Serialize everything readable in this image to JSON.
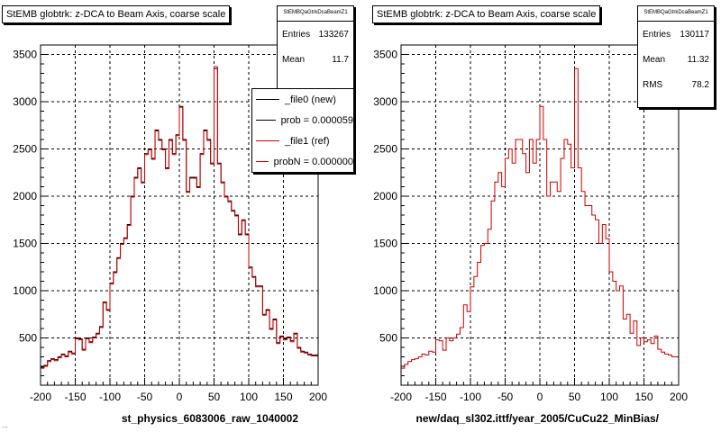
{
  "chart_data": [
    {
      "type": "line",
      "title": "StEMB globtrk: z-DCA to Beam Axis, coarse scale",
      "xlabel": "st_physics_6083006_raw_1040002",
      "ylabel": "",
      "xlim": [
        -200,
        200
      ],
      "ylim": [
        0,
        3600
      ],
      "x_ticks": [
        "-200",
        "-150",
        "-100",
        "-50",
        "0",
        "50",
        "100",
        "150",
        "200"
      ],
      "y_ticks": [
        "500",
        "1000",
        "1500",
        "2000",
        "2500",
        "3000",
        "3500"
      ],
      "grid": true,
      "stats": {
        "name": "StEMBQaGtrkDcaBeamZ1",
        "entries_label": "Entries",
        "entries": "133267",
        "mean_label": "Mean",
        "mean": "11.7"
      },
      "legend": {
        "placement": "top-right",
        "entries": [
          {
            "label": "_file0 (new)",
            "color": "#000000"
          },
          {
            "label": "prob = 0.000059",
            "color": "#000000"
          },
          {
            "label": "_file1 (ref)",
            "color": "#cc0000"
          },
          {
            "label": "probN = 0.000000",
            "color": "#cc0000"
          }
        ]
      },
      "series": [
        {
          "name": "_file0 (new)",
          "color": "#000000",
          "x": [
            -200,
            -195,
            -190,
            -185,
            -180,
            -175,
            -170,
            -165,
            -160,
            -155,
            -150,
            -145,
            -140,
            -135,
            -130,
            -125,
            -120,
            -115,
            -110,
            -105,
            -100,
            -95,
            -90,
            -85,
            -80,
            -75,
            -70,
            -65,
            -60,
            -55,
            -50,
            -45,
            -40,
            -35,
            -30,
            -25,
            -20,
            -15,
            -10,
            -5,
            0,
            5,
            10,
            15,
            20,
            25,
            30,
            35,
            40,
            45,
            50,
            55,
            60,
            65,
            70,
            75,
            80,
            85,
            90,
            95,
            100,
            105,
            110,
            115,
            120,
            125,
            130,
            135,
            140,
            145,
            150,
            155,
            160,
            165,
            170,
            175,
            180,
            185,
            190,
            195
          ],
          "values": [
            190,
            210,
            260,
            280,
            270,
            300,
            330,
            310,
            360,
            340,
            500,
            490,
            380,
            500,
            460,
            510,
            550,
            620,
            880,
            800,
            1080,
            1200,
            1350,
            1500,
            1560,
            1700,
            2000,
            2200,
            2300,
            2150,
            2450,
            2500,
            2400,
            2700,
            2600,
            2500,
            2300,
            2600,
            2450,
            2650,
            2950,
            2600,
            2050,
            2200,
            2200,
            2100,
            2450,
            2700,
            2600,
            2350,
            3350,
            2350,
            2150,
            2000,
            1950,
            1850,
            1800,
            1600,
            1750,
            1600,
            1250,
            1150,
            1050,
            1050,
            750,
            800,
            600,
            700,
            450,
            520,
            490,
            510,
            470,
            550,
            400,
            360,
            350,
            330,
            320,
            320
          ]
        },
        {
          "name": "_file1 (ref)",
          "color": "#cc0000",
          "x": [
            -200,
            -195,
            -190,
            -185,
            -180,
            -175,
            -170,
            -165,
            -160,
            -155,
            -150,
            -145,
            -140,
            -135,
            -130,
            -125,
            -120,
            -115,
            -110,
            -105,
            -100,
            -95,
            -90,
            -85,
            -80,
            -75,
            -70,
            -65,
            -60,
            -55,
            -50,
            -45,
            -40,
            -35,
            -30,
            -25,
            -20,
            -15,
            -10,
            -5,
            0,
            5,
            10,
            15,
            20,
            25,
            30,
            35,
            40,
            45,
            50,
            55,
            60,
            65,
            70,
            75,
            80,
            85,
            90,
            95,
            100,
            105,
            110,
            115,
            120,
            125,
            130,
            135,
            140,
            145,
            150,
            155,
            160,
            165,
            170,
            175,
            180,
            185,
            190,
            195
          ],
          "values": [
            180,
            200,
            250,
            270,
            260,
            290,
            320,
            300,
            350,
            330,
            490,
            480,
            370,
            490,
            450,
            500,
            540,
            610,
            870,
            790,
            1070,
            1190,
            1340,
            1490,
            1550,
            1690,
            1990,
            2190,
            2290,
            2140,
            2440,
            2490,
            2390,
            2690,
            2590,
            2490,
            2290,
            2590,
            2440,
            2640,
            2940,
            2590,
            2040,
            2190,
            2190,
            2090,
            2440,
            2690,
            2590,
            2340,
            3370,
            2340,
            2140,
            1990,
            1940,
            1840,
            1790,
            1590,
            1740,
            1590,
            1240,
            1140,
            1040,
            1040,
            740,
            790,
            590,
            690,
            440,
            510,
            480,
            500,
            460,
            540,
            390,
            350,
            340,
            320,
            310,
            310
          ]
        }
      ]
    },
    {
      "type": "line",
      "title": "StEMB globtrk: z-DCA to Beam Axis, coarse scale",
      "xlabel": "new/daq_sl302.ittf/year_2005/CuCu22_MinBias/",
      "ylabel": "",
      "xlim": [
        -200,
        200
      ],
      "ylim": [
        0,
        3600
      ],
      "x_ticks": [
        "-200",
        "-150",
        "-100",
        "-50",
        "0",
        "50",
        "100",
        "150",
        "200"
      ],
      "y_ticks": [
        "500",
        "1000",
        "1500",
        "2000",
        "2500",
        "3000",
        "3500"
      ],
      "grid": true,
      "stats": {
        "name": "StEMBQaGtrkDcaBeamZ1",
        "entries_label": "Entries",
        "entries": "130117",
        "mean_label": "Mean",
        "mean": "11.32",
        "rms_label": "RMS",
        "rms": "78.2"
      },
      "series": [
        {
          "name": "",
          "color": "#cc0000",
          "x": [
            -200,
            -195,
            -190,
            -185,
            -180,
            -175,
            -170,
            -165,
            -160,
            -155,
            -150,
            -145,
            -140,
            -135,
            -130,
            -125,
            -120,
            -115,
            -110,
            -105,
            -100,
            -95,
            -90,
            -85,
            -80,
            -75,
            -70,
            -65,
            -60,
            -55,
            -50,
            -45,
            -40,
            -35,
            -30,
            -25,
            -20,
            -15,
            -10,
            -5,
            0,
            5,
            10,
            15,
            20,
            25,
            30,
            35,
            40,
            45,
            50,
            55,
            60,
            65,
            70,
            75,
            80,
            85,
            90,
            95,
            100,
            105,
            110,
            115,
            120,
            125,
            130,
            135,
            140,
            145,
            150,
            155,
            160,
            165,
            170,
            175,
            180,
            185,
            190,
            195
          ],
          "values": [
            180,
            220,
            250,
            270,
            280,
            300,
            330,
            320,
            360,
            350,
            480,
            470,
            370,
            500,
            470,
            500,
            540,
            610,
            850,
            780,
            1040,
            1150,
            1300,
            1480,
            1500,
            1650,
            1950,
            2150,
            2250,
            2100,
            2400,
            2500,
            2350,
            2600,
            2600,
            2450,
            2250,
            2600,
            2350,
            2600,
            2950,
            2600,
            2000,
            2150,
            2150,
            2050,
            2400,
            2600,
            2550,
            2300,
            3350,
            2300,
            2050,
            1900,
            1900,
            1800,
            1750,
            1500,
            1700,
            1550,
            1200,
            1100,
            1000,
            1050,
            700,
            750,
            550,
            680,
            420,
            500,
            460,
            480,
            440,
            520,
            380,
            350,
            330,
            320,
            300,
            300
          ]
        }
      ]
    }
  ],
  "footer": "..."
}
